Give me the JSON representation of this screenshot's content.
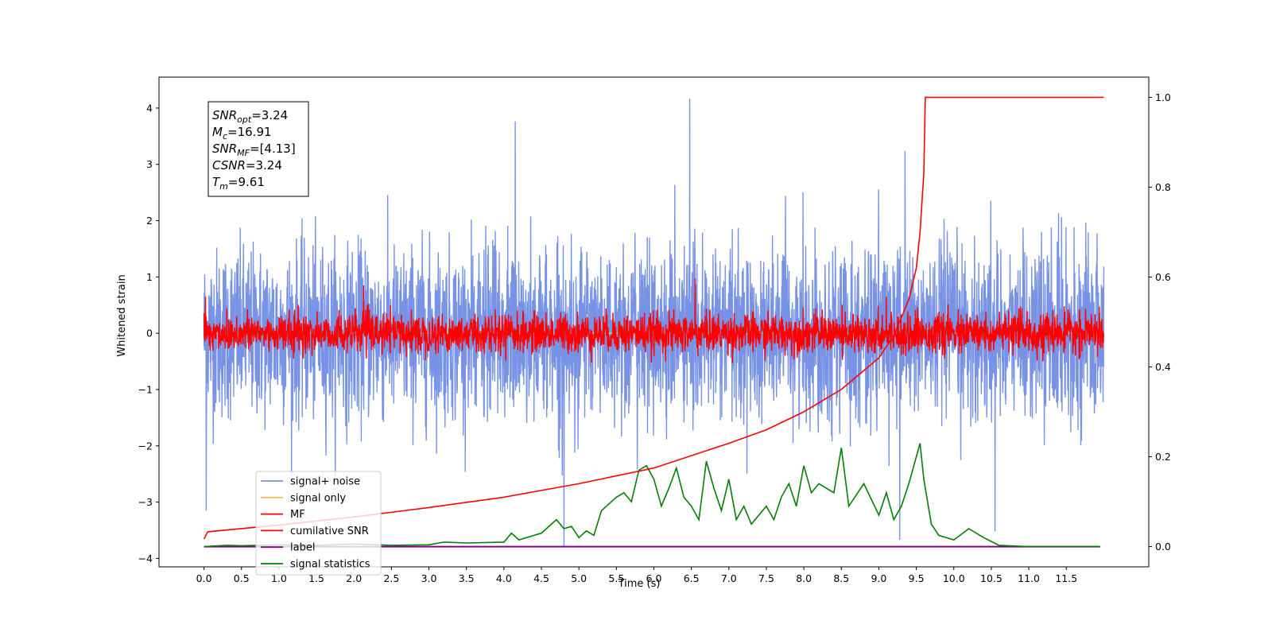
{
  "chart_data": {
    "type": "line",
    "xlabel": "Time (s)",
    "ylabel": "Whitened strain",
    "xlim": [
      -0.6,
      12.6
    ],
    "ylim": [
      -4.15,
      4.55
    ],
    "ylim_right": [
      -0.045,
      1.045
    ],
    "x_ticks": [
      0.0,
      0.5,
      1.0,
      1.5,
      2.0,
      2.5,
      3.0,
      3.5,
      4.0,
      4.5,
      5.0,
      5.5,
      6.0,
      6.5,
      7.0,
      7.5,
      8.0,
      8.5,
      9.0,
      9.5,
      10.0,
      10.5,
      11.0,
      11.5
    ],
    "x_tick_labels": [
      "0.0",
      "0.5",
      "1.0",
      "1.5",
      "2.0",
      "2.5",
      "3.0",
      "3.5",
      "4.0",
      "4.5",
      "5.0",
      "5.5",
      "6.0",
      "6.5",
      "7.0",
      "7.5",
      "8.0",
      "8.5",
      "9.0",
      "9.5",
      "10.0",
      "10.5",
      "11.0",
      "11.5"
    ],
    "y_ticks": [
      -4,
      -3,
      -2,
      -1,
      0,
      1,
      2,
      3,
      4
    ],
    "y_tick_labels": [
      "−4",
      "−3",
      "−2",
      "−1",
      "0",
      "1",
      "2",
      "3",
      "4"
    ],
    "y2_ticks": [
      0.0,
      0.2,
      0.4,
      0.6,
      0.8,
      1.0
    ],
    "y2_tick_labels": [
      "0.0",
      "0.2",
      "0.4",
      "0.6",
      "0.8",
      "1.0"
    ],
    "grid": false,
    "legend_position": "lower-left",
    "annotation": {
      "lines": [
        {
          "main": "SNR",
          "sub": "opt",
          "rest": "=3.24"
        },
        {
          "main": "M",
          "sub": "c",
          "rest": "=16.91"
        },
        {
          "main": "SNR",
          "sub": "MF",
          "rest": "=[4.13]"
        },
        {
          "main": "CSNR",
          "sub": "",
          "rest": "=3.24"
        },
        {
          "main": "T",
          "sub": "m",
          "rest": "=9.61"
        }
      ]
    },
    "series": [
      {
        "name": "signal+ noise",
        "color": "#7893e6",
        "axis": "left",
        "x_range": [
          0.0,
          12.0
        ],
        "mean": 0.0,
        "typical_range": [
          -2.0,
          2.0
        ],
        "notable_spikes": [
          [
            6.48,
            4.17
          ],
          [
            4.15,
            3.76
          ],
          [
            9.35,
            3.24
          ],
          [
            0.03,
            -3.15
          ],
          [
            4.8,
            -3.8
          ],
          [
            9.28,
            -3.67
          ],
          [
            10.55,
            -3.52
          ]
        ]
      },
      {
        "name": "signal only",
        "color": "#f5c05a",
        "axis": "left",
        "x": [
          0.0,
          12.0
        ],
        "y": [
          0.0,
          0.0
        ]
      },
      {
        "name": "MF",
        "color": "#ff0000",
        "axis": "left",
        "x_range": [
          0.0,
          12.0
        ],
        "mean": 0.0,
        "typical_range": [
          -0.4,
          0.4
        ],
        "notable_spikes": [
          [
            2.13,
            0.85
          ],
          [
            6.55,
            0.97
          ],
          [
            9.1,
            0.65
          ],
          [
            0.02,
            0.65
          ]
        ]
      },
      {
        "name": "cumilative SNR",
        "color": "#ff0000",
        "axis": "right",
        "x": [
          0.0,
          0.05,
          1.0,
          2.0,
          3.0,
          4.0,
          5.0,
          6.0,
          7.0,
          7.5,
          8.0,
          8.5,
          9.0,
          9.2,
          9.4,
          9.5,
          9.55,
          9.6,
          9.62,
          12.0
        ],
        "y": [
          0.017,
          0.033,
          0.048,
          0.066,
          0.087,
          0.11,
          0.14,
          0.175,
          0.23,
          0.26,
          0.3,
          0.35,
          0.42,
          0.47,
          0.55,
          0.62,
          0.7,
          0.83,
          1.0,
          1.0
        ]
      },
      {
        "name": "label",
        "color": "#800080",
        "axis": "right",
        "x": [
          0.0,
          11.95
        ],
        "y": [
          0.0,
          0.0
        ]
      },
      {
        "name": "signal statistics",
        "color": "#008000",
        "axis": "right",
        "x": [
          0.0,
          0.3,
          0.5,
          1.0,
          1.5,
          2.0,
          2.5,
          3.0,
          3.2,
          3.5,
          4.0,
          4.1,
          4.2,
          4.5,
          4.7,
          4.8,
          4.9,
          5.0,
          5.1,
          5.2,
          5.3,
          5.5,
          5.6,
          5.7,
          5.8,
          5.9,
          6.0,
          6.1,
          6.2,
          6.3,
          6.4,
          6.5,
          6.6,
          6.7,
          6.8,
          6.9,
          7.0,
          7.1,
          7.2,
          7.3,
          7.4,
          7.5,
          7.6,
          7.7,
          7.8,
          7.9,
          8.0,
          8.1,
          8.2,
          8.4,
          8.5,
          8.6,
          8.8,
          9.0,
          9.1,
          9.2,
          9.3,
          9.4,
          9.5,
          9.55,
          9.6,
          9.7,
          9.8,
          10.0,
          10.2,
          10.4,
          10.6,
          11.0,
          11.5,
          11.95
        ],
        "y": [
          0.0,
          0.003,
          0.002,
          0.004,
          0.003,
          0.006,
          0.003,
          0.004,
          0.01,
          0.008,
          0.01,
          0.03,
          0.015,
          0.03,
          0.06,
          0.04,
          0.045,
          0.02,
          0.035,
          0.025,
          0.08,
          0.11,
          0.12,
          0.1,
          0.17,
          0.18,
          0.15,
          0.09,
          0.13,
          0.175,
          0.11,
          0.09,
          0.06,
          0.19,
          0.13,
          0.08,
          0.15,
          0.06,
          0.09,
          0.05,
          0.07,
          0.09,
          0.06,
          0.11,
          0.14,
          0.09,
          0.18,
          0.12,
          0.14,
          0.12,
          0.22,
          0.09,
          0.14,
          0.07,
          0.12,
          0.06,
          0.09,
          0.14,
          0.2,
          0.23,
          0.15,
          0.05,
          0.025,
          0.015,
          0.04,
          0.02,
          0.003,
          0.0,
          0.0,
          0.0
        ]
      }
    ]
  }
}
